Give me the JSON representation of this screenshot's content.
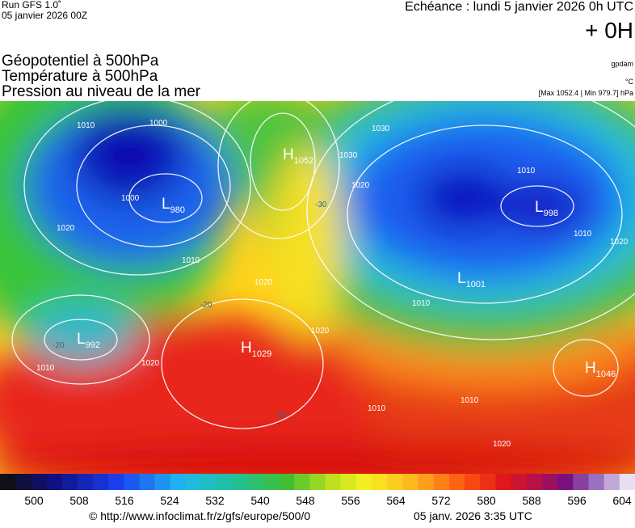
{
  "header": {
    "run": "Run GFS 1.0˚",
    "date": "05 janvier 2026 00Z",
    "echeance": "Echéance : lundi 5 janvier 2026 0h UTC",
    "step": "+ 0H",
    "titles": [
      "Géopotentiel à 500hPa",
      "Température à 500hPa",
      "Pression au niveau de la mer"
    ],
    "units": [
      "gpdam",
      "°C",
      "[Max 1052.4 | Min 979.7] hPa"
    ]
  },
  "map": {
    "centers": [
      {
        "letter": "H",
        "value": "1052"
      },
      {
        "letter": "L",
        "value": "980"
      },
      {
        "letter": "L",
        "value": "998"
      },
      {
        "letter": "L",
        "value": "1001"
      },
      {
        "letter": "L",
        "value": "992"
      },
      {
        "letter": "H",
        "value": "1029"
      },
      {
        "letter": "H",
        "value": "1046"
      }
    ],
    "isobar_labels": [
      "1010",
      "1000",
      "1000",
      "1020",
      "1010",
      "1030",
      "1020",
      "1010",
      "1010",
      "1020",
      "1010",
      "1020",
      "1020",
      "1010",
      "1020",
      "1010",
      "1020",
      "1030",
      "1010"
    ],
    "temperature_labels": [
      "-20",
      "-20",
      "-30",
      "-20"
    ]
  },
  "colorbar": {
    "labels": [
      "500",
      "508",
      "516",
      "524",
      "532",
      "540",
      "548",
      "556",
      "564",
      "572",
      "580",
      "588",
      "596",
      "604"
    ]
  },
  "footer": {
    "url": "© http://www.infoclimat.fr/z/gfs/europe/500/0",
    "time": "05 janv. 2026  3:35 UTC"
  }
}
